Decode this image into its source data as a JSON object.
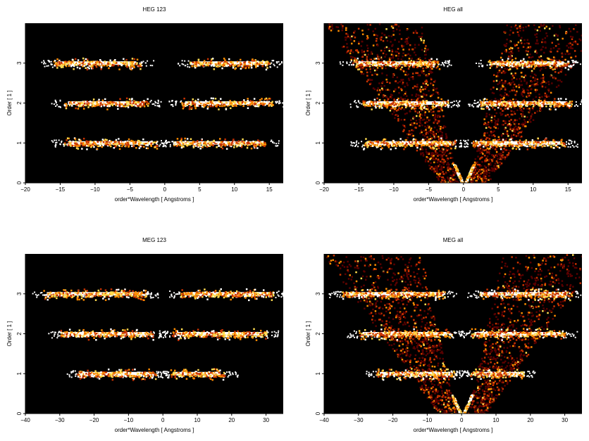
{
  "chart_data": [
    {
      "type": "heatmap",
      "title": "HEG 123",
      "xlabel": "order*Wavelength [ Angstroms ]",
      "ylabel": "Order [ 1 ]",
      "xlim": [
        -20,
        17
      ],
      "ylim": [
        0,
        4
      ],
      "xticks": [
        -20,
        -15,
        -10,
        -5,
        0,
        5,
        10,
        15
      ],
      "yticks": [
        0,
        1,
        2,
        3
      ],
      "colormap": [
        "#000000",
        "#5a0000",
        "#c83200",
        "#ff8c00",
        "#ffdc50",
        "#ffffff"
      ],
      "background_color": "#000000",
      "bands": [
        {
          "order": 1,
          "x_start": -14.5,
          "x_end": -1.2,
          "intensity": "high"
        },
        {
          "order": 1,
          "x_start": 1.2,
          "x_end": 14.5,
          "intensity": "high"
        },
        {
          "order": 2,
          "x_start": -14.5,
          "x_end": -2.3,
          "intensity": "high"
        },
        {
          "order": 2,
          "x_start": 2.3,
          "x_end": 15.5,
          "intensity": "high"
        },
        {
          "order": 3,
          "x_start": -16.0,
          "x_end": -3.5,
          "intensity": "high"
        },
        {
          "order": 3,
          "x_start": 3.5,
          "x_end": 15.0,
          "intensity": "high"
        }
      ],
      "has_v_background": false
    },
    {
      "type": "heatmap",
      "title": "HEG all",
      "xlabel": "order*Wavelength [ Angstroms ]",
      "ylabel": "Order [ 1 ]",
      "xlim": [
        -20,
        17
      ],
      "ylim": [
        0,
        4
      ],
      "xticks": [
        -20,
        -15,
        -10,
        -5,
        0,
        5,
        10,
        15
      ],
      "yticks": [
        0,
        1,
        2,
        3
      ],
      "colormap": [
        "#000000",
        "#5a0000",
        "#c83200",
        "#ff8c00",
        "#ffdc50",
        "#ffffff"
      ],
      "background_color": "#000000",
      "bands": [
        {
          "order": 1,
          "x_start": -14.5,
          "x_end": -1.2,
          "intensity": "high"
        },
        {
          "order": 1,
          "x_start": 1.2,
          "x_end": 14.5,
          "intensity": "high"
        },
        {
          "order": 2,
          "x_start": -14.5,
          "x_end": -2.3,
          "intensity": "high"
        },
        {
          "order": 2,
          "x_start": 2.3,
          "x_end": 15.5,
          "intensity": "high"
        },
        {
          "order": 3,
          "x_start": -16.0,
          "x_end": -3.5,
          "intensity": "high"
        },
        {
          "order": 3,
          "x_start": 3.5,
          "x_end": 15.0,
          "intensity": "high"
        }
      ],
      "has_v_background": true
    },
    {
      "type": "heatmap",
      "title": "MEG 123",
      "xlabel": "order*Wavelength [ Angstroms ]",
      "ylabel": "Order [ 1 ]",
      "xlim": [
        -40,
        35
      ],
      "ylim": [
        0,
        4
      ],
      "xticks": [
        -40,
        -30,
        -20,
        -10,
        0,
        10,
        20,
        30
      ],
      "yticks": [
        0,
        1,
        2,
        3
      ],
      "colormap": [
        "#000000",
        "#5a0000",
        "#c83200",
        "#ff8c00",
        "#ffdc50",
        "#ffffff"
      ],
      "background_color": "#000000",
      "bands": [
        {
          "order": 1,
          "x_start": -25.0,
          "x_end": -2.0,
          "intensity": "high"
        },
        {
          "order": 1,
          "x_start": 2.0,
          "x_end": 18.0,
          "intensity": "high"
        },
        {
          "order": 2,
          "x_start": -30.0,
          "x_end": -3.0,
          "intensity": "high"
        },
        {
          "order": 2,
          "x_start": 2.5,
          "x_end": 30.0,
          "intensity": "high"
        },
        {
          "order": 3,
          "x_start": -35.0,
          "x_end": -5.0,
          "intensity": "high"
        },
        {
          "order": 3,
          "x_start": 5.0,
          "x_end": 32.0,
          "intensity": "high"
        }
      ],
      "has_v_background": false
    },
    {
      "type": "heatmap",
      "title": "MEG all",
      "xlabel": "order*Wavelength [ Angstroms ]",
      "ylabel": "Order [ 1 ]",
      "xlim": [
        -40,
        35
      ],
      "ylim": [
        0,
        4
      ],
      "xticks": [
        -40,
        -30,
        -20,
        -10,
        0,
        10,
        20,
        30
      ],
      "yticks": [
        0,
        1,
        2,
        3
      ],
      "colormap": [
        "#000000",
        "#5a0000",
        "#c83200",
        "#ff8c00",
        "#ffdc50",
        "#ffffff"
      ],
      "background_color": "#000000",
      "bands": [
        {
          "order": 1,
          "x_start": -25.0,
          "x_end": -2.0,
          "intensity": "high"
        },
        {
          "order": 1,
          "x_start": 2.0,
          "x_end": 18.0,
          "intensity": "high"
        },
        {
          "order": 2,
          "x_start": -30.0,
          "x_end": -3.0,
          "intensity": "high"
        },
        {
          "order": 2,
          "x_start": 2.5,
          "x_end": 30.0,
          "intensity": "high"
        },
        {
          "order": 3,
          "x_start": -35.0,
          "x_end": -5.0,
          "intensity": "high"
        },
        {
          "order": 3,
          "x_start": 5.0,
          "x_end": 32.0,
          "intensity": "high"
        }
      ],
      "has_v_background": true
    }
  ]
}
